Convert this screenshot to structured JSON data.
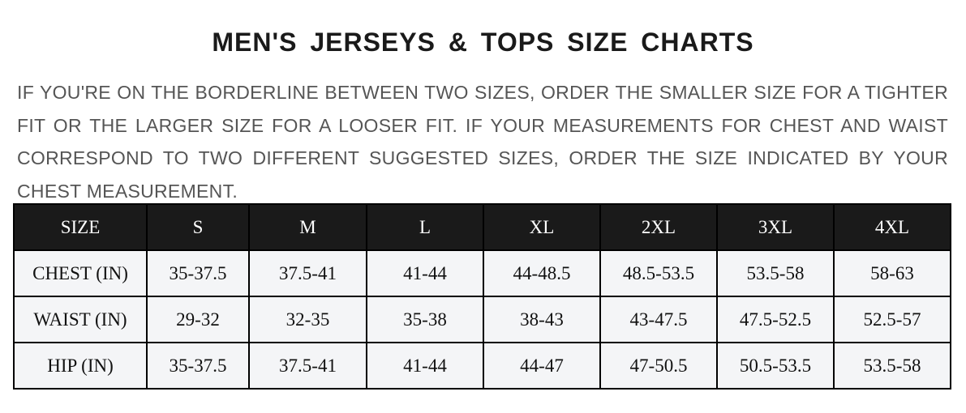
{
  "title": "MEN'S JERSEYS & TOPS SIZE CHARTS",
  "description": "IF YOU'RE ON THE BORDERLINE BETWEEN TWO SIZES, ORDER THE SMALLER SIZE FOR A TIGHTER FIT OR THE LARGER SIZE FOR A LOOSER FIT. IF YOUR MEASUREMENTS FOR CHEST AND WAIST CORRESPOND TO TWO DIFFERENT SUGGESTED SIZES, ORDER THE SIZE INDICATED BY YOUR CHEST MEASUREMENT.",
  "table": {
    "header": [
      "SIZE",
      "S",
      "M",
      "L",
      "XL",
      "2XL",
      "3XL",
      "4XL"
    ],
    "rows": [
      [
        "CHEST (IN)",
        "35-37.5",
        "37.5-41",
        "41-44",
        "44-48.5",
        "48.5-53.5",
        "53.5-58",
        "58-63"
      ],
      [
        "WAIST (IN)",
        "29-32",
        "32-35",
        "35-38",
        "38-43",
        "43-47.5",
        "47.5-52.5",
        "52.5-57"
      ],
      [
        "HIP (IN)",
        "35-37.5",
        "37.5-41",
        "41-44",
        "44-47",
        "47-50.5",
        "50.5-53.5",
        "53.5-58"
      ]
    ]
  }
}
